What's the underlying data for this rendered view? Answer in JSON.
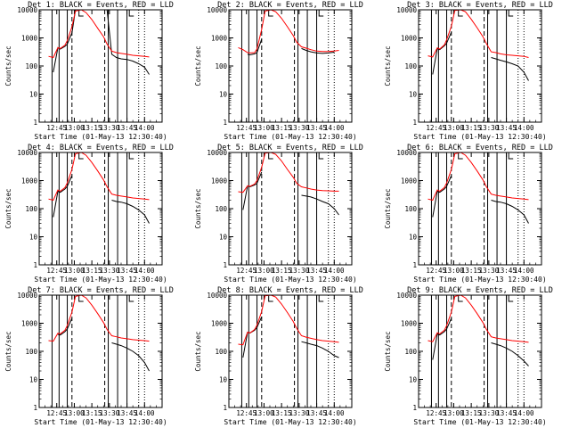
{
  "colors": {
    "events": "#000000",
    "lld": "#ff0000",
    "background": "#ffffff",
    "axes": "#000000"
  },
  "chart_data": [
    {
      "type": "line",
      "detector": 1,
      "title": "Det 1: BLACK = Events, RED = LLD",
      "ylabel": "Counts/sec",
      "xlabel": "Start Time (01-May-13 12:30:40)",
      "yscale": "log",
      "ylim": [
        1,
        10000
      ],
      "x_ticks": [
        "12:45",
        "13:00",
        "13:15",
        "13:30",
        "13:45",
        "14:00"
      ],
      "y_ticks": [
        "1",
        "10",
        "100",
        "1000",
        "10000"
      ],
      "x": [
        "12:38",
        "12:42",
        "12:46",
        "12:48",
        "12:52",
        "12:54",
        "12:58",
        "13:01",
        "13:06",
        "13:10",
        "13:15",
        "13:20",
        "13:25",
        "13:28",
        "13:32",
        "13:36",
        "13:40",
        "13:45",
        "13:50",
        "13:55",
        "14:00",
        "14:04"
      ],
      "series": [
        {
          "name": "BLACK = Events",
          "color": "#000000",
          "values": [
            null,
            60,
            450,
            400,
            500,
            600,
            1500,
            10000,
            10000,
            10000,
            10000,
            10000,
            10000,
            10000,
            260,
            200,
            180,
            170,
            150,
            120,
            90,
            50
          ]
        },
        {
          "name": "RED = LLD",
          "color": "#ff0000",
          "values": [
            220,
            200,
            450,
            420,
            550,
            800,
            2500,
            9000,
            10000,
            8000,
            4500,
            2200,
            1100,
            600,
            340,
            300,
            280,
            260,
            240,
            230,
            220,
            210
          ]
        }
      ]
    },
    {
      "type": "line",
      "detector": 2,
      "title": "Det 2: BLACK = Events, RED = LLD",
      "ylabel": "Counts/sec",
      "xlabel": "Start Time (01-May-13 12:30:40)",
      "yscale": "log",
      "ylim": [
        1,
        10000
      ],
      "x_ticks": [
        "12:45",
        "13:00",
        "13:15",
        "13:30",
        "13:45",
        "14:00"
      ],
      "y_ticks": [
        "1",
        "10",
        "100",
        "1000",
        "10000"
      ],
      "x": [
        "12:38",
        "12:42",
        "12:46",
        "12:48",
        "12:52",
        "12:54",
        "12:58",
        "13:01",
        "13:06",
        "13:10",
        "13:15",
        "13:20",
        "13:25",
        "13:28",
        "13:32",
        "13:36",
        "13:40",
        "13:45",
        "13:50",
        "13:55",
        "14:00",
        "14:04"
      ],
      "series": [
        {
          "name": "BLACK = Events",
          "color": "#000000",
          "values": [
            null,
            null,
            260,
            250,
            270,
            300,
            900,
            null,
            null,
            null,
            null,
            null,
            null,
            null,
            420,
            360,
            320,
            290,
            280,
            290,
            310,
            null
          ]
        },
        {
          "name": "RED = LLD",
          "color": "#ff0000",
          "values": [
            450,
            380,
            300,
            290,
            300,
            400,
            2000,
            9000,
            10000,
            8500,
            5000,
            2500,
            1200,
            700,
            480,
            430,
            380,
            340,
            330,
            330,
            340,
            360
          ]
        }
      ]
    },
    {
      "type": "line",
      "detector": 3,
      "title": "Det 3: BLACK = Events, RED = LLD",
      "ylabel": "Counts/sec",
      "xlabel": "Start Time (01-May-13 12:30:40)",
      "yscale": "log",
      "ylim": [
        1,
        10000
      ],
      "x_ticks": [
        "12:45",
        "13:00",
        "13:15",
        "13:30",
        "13:45",
        "14:00"
      ],
      "y_ticks": [
        "1",
        "10",
        "100",
        "1000",
        "10000"
      ],
      "x": [
        "12:38",
        "12:42",
        "12:46",
        "12:48",
        "12:52",
        "12:54",
        "12:58",
        "13:01",
        "13:06",
        "13:10",
        "13:15",
        "13:20",
        "13:25",
        "13:28",
        "13:32",
        "13:36",
        "13:40",
        "13:45",
        "13:50",
        "13:55",
        "14:00",
        "14:04"
      ],
      "series": [
        {
          "name": "BLACK = Events",
          "color": "#000000",
          "values": [
            null,
            50,
            420,
            380,
            520,
            650,
            1600,
            null,
            null,
            null,
            null,
            null,
            null,
            null,
            200,
            180,
            160,
            140,
            120,
            100,
            60,
            30
          ]
        },
        {
          "name": "RED = LLD",
          "color": "#ff0000",
          "values": [
            230,
            210,
            440,
            400,
            560,
            850,
            2600,
            9500,
            10000,
            8500,
            4600,
            2300,
            1100,
            620,
            320,
            300,
            270,
            250,
            240,
            230,
            220,
            200
          ]
        }
      ]
    },
    {
      "type": "line",
      "detector": 4,
      "title": "Det 4: BLACK = Events, RED = LLD",
      "ylabel": "Counts/sec",
      "xlabel": "Start Time (01-May-13 12:30:40)",
      "yscale": "log",
      "ylim": [
        1,
        10000
      ],
      "x_ticks": [
        "12:45",
        "13:00",
        "13:15",
        "13:30",
        "13:45",
        "14:00"
      ],
      "y_ticks": [
        "1",
        "10",
        "100",
        "1000",
        "10000"
      ],
      "x": [
        "12:38",
        "12:42",
        "12:46",
        "12:48",
        "12:52",
        "12:54",
        "12:58",
        "13:01",
        "13:06",
        "13:10",
        "13:15",
        "13:20",
        "13:25",
        "13:28",
        "13:32",
        "13:36",
        "13:40",
        "13:45",
        "13:50",
        "13:55",
        "14:00",
        "14:04"
      ],
      "series": [
        {
          "name": "BLACK = Events",
          "color": "#000000",
          "values": [
            null,
            50,
            420,
            380,
            500,
            620,
            1500,
            null,
            null,
            null,
            null,
            null,
            null,
            null,
            200,
            180,
            170,
            150,
            120,
            90,
            60,
            30
          ]
        },
        {
          "name": "RED = LLD",
          "color": "#ff0000",
          "values": [
            220,
            200,
            460,
            420,
            560,
            820,
            2500,
            9000,
            10000,
            8000,
            4400,
            2200,
            1050,
            600,
            330,
            300,
            280,
            260,
            240,
            230,
            220,
            210
          ]
        }
      ]
    },
    {
      "type": "line",
      "detector": 5,
      "title": "Det 5: BLACK = Events, RED = LLD",
      "ylabel": "Counts/sec",
      "xlabel": "Start Time (01-May-13 12:30:40)",
      "yscale": "log",
      "ylim": [
        1,
        10000
      ],
      "x_ticks": [
        "12:45",
        "13:00",
        "13:15",
        "13:30",
        "13:45",
        "14:00"
      ],
      "y_ticks": [
        "1",
        "10",
        "100",
        "1000",
        "10000"
      ],
      "x": [
        "12:38",
        "12:42",
        "12:46",
        "12:48",
        "12:52",
        "12:54",
        "12:58",
        "13:01",
        "13:06",
        "13:10",
        "13:15",
        "13:20",
        "13:25",
        "13:28",
        "13:32",
        "13:36",
        "13:40",
        "13:45",
        "13:50",
        "13:55",
        "14:00",
        "14:04"
      ],
      "series": [
        {
          "name": "BLACK = Events",
          "color": "#000000",
          "values": [
            null,
            90,
            650,
            600,
            700,
            800,
            2000,
            null,
            null,
            null,
            null,
            null,
            null,
            null,
            300,
            280,
            260,
            220,
            180,
            150,
            100,
            60
          ]
        },
        {
          "name": "RED = LLD",
          "color": "#ff0000",
          "values": [
            400,
            380,
            650,
            620,
            750,
            1000,
            3000,
            9500,
            10000,
            8500,
            5000,
            2500,
            1300,
            800,
            600,
            550,
            500,
            460,
            440,
            430,
            420,
            420
          ]
        }
      ]
    },
    {
      "type": "line",
      "detector": 6,
      "title": "Det 6: BLACK = Events, RED = LLD",
      "ylabel": "Counts/sec",
      "xlabel": "Start Time (01-May-13 12:30:40)",
      "yscale": "log",
      "ylim": [
        1,
        10000
      ],
      "x_ticks": [
        "12:45",
        "13:00",
        "13:15",
        "13:30",
        "13:45",
        "14:00"
      ],
      "y_ticks": [
        "1",
        "10",
        "100",
        "1000",
        "10000"
      ],
      "x": [
        "12:38",
        "12:42",
        "12:46",
        "12:48",
        "12:52",
        "12:54",
        "12:58",
        "13:01",
        "13:06",
        "13:10",
        "13:15",
        "13:20",
        "13:25",
        "13:28",
        "13:32",
        "13:36",
        "13:40",
        "13:45",
        "13:50",
        "13:55",
        "14:00",
        "14:04"
      ],
      "series": [
        {
          "name": "BLACK = Events",
          "color": "#000000",
          "values": [
            null,
            50,
            420,
            380,
            500,
            620,
            1500,
            null,
            null,
            null,
            null,
            null,
            null,
            null,
            200,
            180,
            170,
            150,
            120,
            90,
            60,
            30
          ]
        },
        {
          "name": "RED = LLD",
          "color": "#ff0000",
          "values": [
            220,
            200,
            460,
            420,
            560,
            820,
            2500,
            9000,
            10000,
            8000,
            4400,
            2200,
            1050,
            600,
            330,
            300,
            280,
            260,
            240,
            230,
            220,
            210
          ]
        }
      ]
    },
    {
      "type": "line",
      "detector": 7,
      "title": "Det 7: BLACK = Events, RED = LLD",
      "ylabel": "Counts/sec",
      "xlabel": "Start Time (01-May-13 12:30:40)",
      "yscale": "log",
      "ylim": [
        1,
        10000
      ],
      "x_ticks": [
        "12:45",
        "13:00",
        "13:15",
        "13:30",
        "13:45",
        "14:00"
      ],
      "y_ticks": [
        "1",
        "10",
        "100",
        "1000",
        "10000"
      ],
      "x": [
        "12:38",
        "12:42",
        "12:46",
        "12:48",
        "12:52",
        "12:54",
        "12:58",
        "13:01",
        "13:06",
        "13:10",
        "13:15",
        "13:20",
        "13:25",
        "13:28",
        "13:32",
        "13:36",
        "13:40",
        "13:45",
        "13:50",
        "13:55",
        "14:00",
        "14:04"
      ],
      "series": [
        {
          "name": "BLACK = Events",
          "color": "#000000",
          "values": [
            35,
            null,
            400,
            380,
            500,
            620,
            1500,
            null,
            null,
            null,
            null,
            null,
            null,
            null,
            200,
            180,
            160,
            130,
            100,
            70,
            40,
            20
          ]
        },
        {
          "name": "RED = LLD",
          "color": "#ff0000",
          "values": [
            240,
            230,
            440,
            420,
            560,
            820,
            2500,
            9000,
            10000,
            8000,
            4400,
            2200,
            1050,
            600,
            360,
            330,
            300,
            280,
            260,
            250,
            240,
            230
          ]
        }
      ]
    },
    {
      "type": "line",
      "detector": 8,
      "title": "Det 8: BLACK = Events, RED = LLD",
      "ylabel": "Counts/sec",
      "xlabel": "Start Time (01-May-13 12:30:40)",
      "yscale": "log",
      "ylim": [
        1,
        10000
      ],
      "x_ticks": [
        "12:45",
        "13:00",
        "13:15",
        "13:30",
        "13:45",
        "14:00"
      ],
      "y_ticks": [
        "1",
        "10",
        "100",
        "1000",
        "10000"
      ],
      "x": [
        "12:38",
        "12:42",
        "12:46",
        "12:48",
        "12:52",
        "12:54",
        "12:58",
        "13:01",
        "13:06",
        "13:10",
        "13:15",
        "13:20",
        "13:25",
        "13:28",
        "13:32",
        "13:36",
        "13:40",
        "13:45",
        "13:50",
        "13:55",
        "14:00",
        "14:04"
      ],
      "series": [
        {
          "name": "BLACK = Events",
          "color": "#000000",
          "values": [
            null,
            60,
            480,
            450,
            560,
            700,
            1700,
            null,
            null,
            null,
            null,
            null,
            null,
            null,
            220,
            200,
            180,
            160,
            130,
            100,
            70,
            60
          ]
        },
        {
          "name": "RED = LLD",
          "color": "#ff0000",
          "values": [
            180,
            170,
            480,
            450,
            600,
            850,
            2600,
            9500,
            10000,
            8500,
            4800,
            2400,
            1150,
            650,
            360,
            320,
            290,
            260,
            240,
            230,
            220,
            210
          ]
        }
      ]
    },
    {
      "type": "line",
      "detector": 9,
      "title": "Det 9: BLACK = Events, RED = LLD",
      "ylabel": "Counts/sec",
      "xlabel": "Start Time (01-May-13 12:30:40)",
      "yscale": "log",
      "ylim": [
        1,
        10000
      ],
      "x_ticks": [
        "12:45",
        "13:00",
        "13:15",
        "13:30",
        "13:45",
        "14:00"
      ],
      "y_ticks": [
        "1",
        "10",
        "100",
        "1000",
        "10000"
      ],
      "x": [
        "12:38",
        "12:42",
        "12:46",
        "12:48",
        "12:52",
        "12:54",
        "12:58",
        "13:01",
        "13:06",
        "13:10",
        "13:15",
        "13:20",
        "13:25",
        "13:28",
        "13:32",
        "13:36",
        "13:40",
        "13:45",
        "13:50",
        "13:55",
        "14:00",
        "14:04"
      ],
      "series": [
        {
          "name": "BLACK = Events",
          "color": "#000000",
          "values": [
            null,
            50,
            420,
            380,
            500,
            620,
            1500,
            null,
            null,
            null,
            null,
            null,
            null,
            null,
            200,
            180,
            160,
            130,
            100,
            70,
            45,
            30
          ]
        },
        {
          "name": "RED = LLD",
          "color": "#ff0000",
          "values": [
            240,
            220,
            460,
            420,
            560,
            820,
            2500,
            9000,
            10000,
            8000,
            4400,
            2200,
            1050,
            600,
            330,
            300,
            280,
            260,
            240,
            230,
            220,
            210
          ]
        }
      ]
    }
  ]
}
